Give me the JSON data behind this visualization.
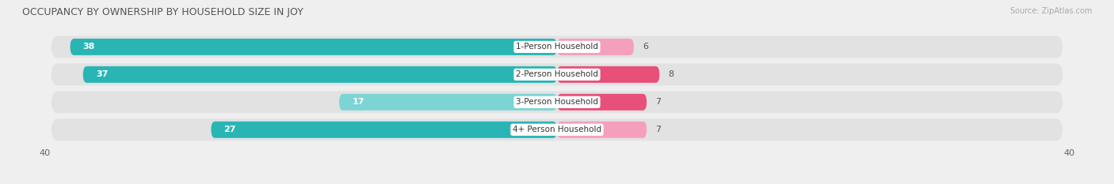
{
  "title": "OCCUPANCY BY OWNERSHIP BY HOUSEHOLD SIZE IN JOY",
  "source": "Source: ZipAtlas.com",
  "categories": [
    "1-Person Household",
    "2-Person Household",
    "3-Person Household",
    "4+ Person Household"
  ],
  "owner_values": [
    38,
    37,
    17,
    27
  ],
  "renter_values": [
    6,
    8,
    7,
    7
  ],
  "owner_color_dark": "#2ab5b5",
  "owner_color_light": "#7dd4d4",
  "renter_color_dark": "#e8507a",
  "renter_color_light": "#f4a0bc",
  "axis_max": 40,
  "background_color": "#efefef",
  "bar_bg_color": "#e2e2e2",
  "title_fontsize": 9,
  "bar_label_fontsize": 8,
  "category_fontsize": 7.5,
  "legend_fontsize": 8,
  "axis_fontsize": 8
}
